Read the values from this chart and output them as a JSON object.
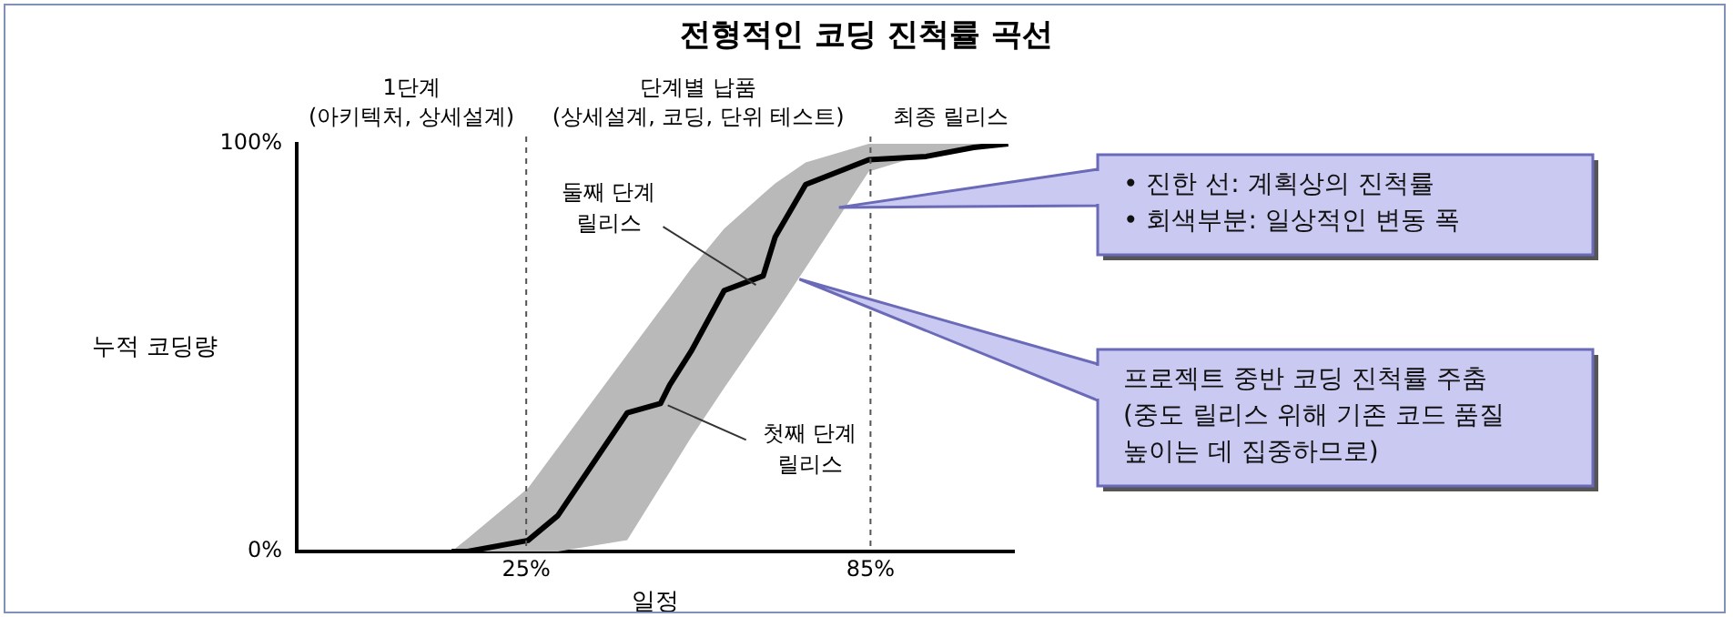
{
  "chart_data": {
    "type": "line",
    "title": "전형적인 코딩 진척률 곡선",
    "xlabel": "일정",
    "ylabel": "누적 코딩량",
    "xlim": [
      -15,
      110
    ],
    "ylim": [
      0,
      100
    ],
    "xticks": [
      {
        "value": 25,
        "label": "25%"
      },
      {
        "value": 85,
        "label": "85%"
      }
    ],
    "yticks": [
      {
        "value": 0,
        "label": "0%"
      },
      {
        "value": 100,
        "label": "100%"
      }
    ],
    "ref_lines": [
      {
        "axis": "x",
        "value": 25,
        "line_style": "dashed"
      },
      {
        "axis": "x",
        "value": 85,
        "line_style": "dashed"
      }
    ],
    "series": [
      {
        "type": "line",
        "color": "#000000",
        "x": [
          12,
          14.8,
          25.3,
          30.5,
          42.6,
          48.4,
          50,
          53.7,
          59.5,
          66.3,
          68.4,
          73.7,
          84.7,
          94.7,
          103,
          109
        ],
        "values": [
          0,
          0,
          2.7,
          8.8,
          34,
          36.3,
          40.8,
          49,
          64,
          67.6,
          77.2,
          90,
          96.1,
          96.9,
          99.1,
          100
        ],
        "lower": [
          0,
          0,
          0,
          0,
          2.8,
          15.9,
          19.5,
          27.9,
          40.1,
          54,
          58.3,
          69.6,
          93.2,
          97.5,
          99.5,
          100
        ],
        "upper": [
          0,
          3.2,
          15.5,
          25.4,
          48.3,
          59.3,
          62.3,
          69.3,
          79.2,
          87.7,
          90.3,
          95.4,
          100,
          100,
          100,
          100
        ]
      }
    ],
    "annotations": [
      "1단계\n(아키텍처, 상세설계)",
      "단계별 납품\n(상세설계, 코딩, 단위 테스트)",
      "최종 릴리스",
      {
        "text": "둘째 단계\n릴리스",
        "x": 66.3,
        "y": 67.6
      },
      {
        "text": "첫째 단계\n릴리스",
        "x": 48.4,
        "y": 36.3
      },
      {
        "text": "• 진한 선: 계획상의 진척률\n• 회색부분: 일상적인 변동 폭",
        "x": 79.5,
        "y": 84.4
      },
      {
        "text": "프로젝트 중반 코딩 진척률 주춤\n(중도 릴리스 위해 기존 코드 품질\n높이는 데 집중하므로)",
        "x": 72.6,
        "y": 66.8
      }
    ]
  }
}
